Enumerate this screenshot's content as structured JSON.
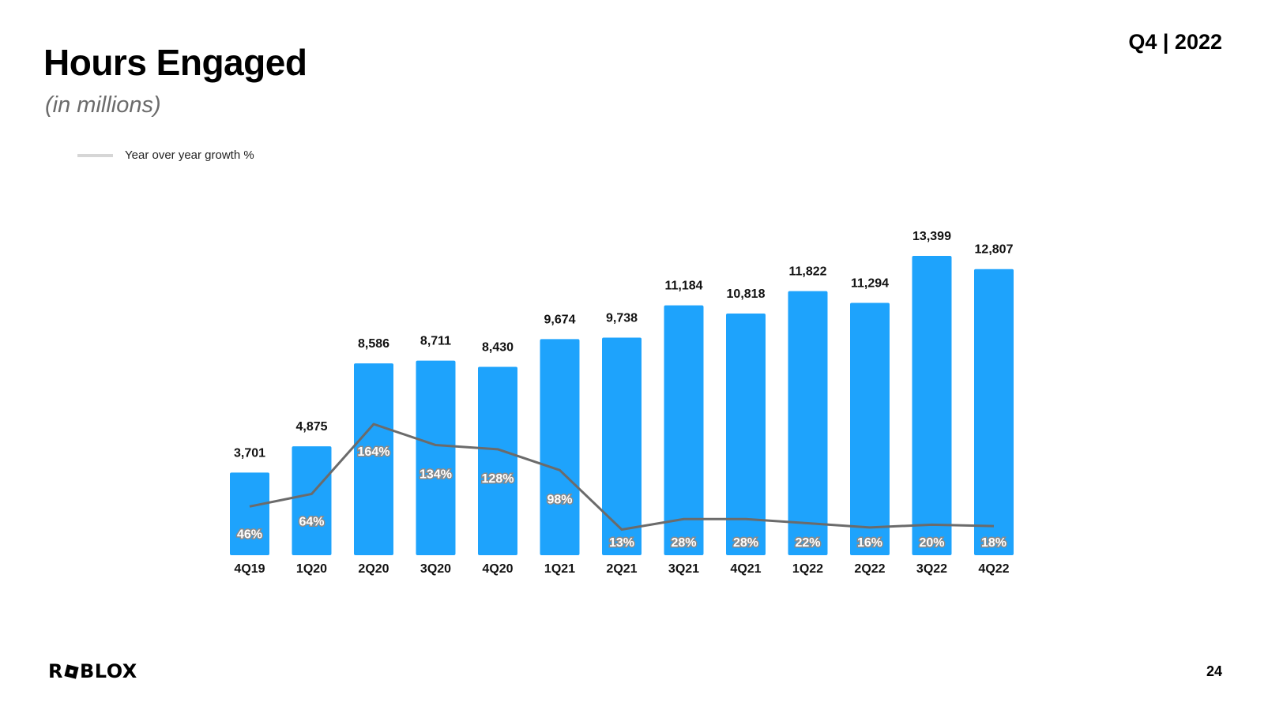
{
  "header": {
    "title": "Hours Engaged",
    "subtitle": "(in millions)",
    "period": "Q4 | 2022"
  },
  "legend": {
    "label": "Year over year growth %",
    "color": "#d6d6d6"
  },
  "footer": {
    "logo_text_left": "R",
    "logo_text_right": "BLOX",
    "page_number": "24"
  },
  "colors": {
    "bar": "#1ea3fc",
    "line": "#6b6b6b"
  },
  "chart_data": {
    "type": "bar",
    "categories": [
      "4Q19",
      "1Q20",
      "2Q20",
      "3Q20",
      "4Q20",
      "1Q21",
      "2Q21",
      "3Q21",
      "4Q21",
      "1Q22",
      "2Q22",
      "3Q22",
      "4Q22"
    ],
    "series": [
      {
        "type": "bar",
        "values": [
          3701,
          4875,
          8586,
          8711,
          8430,
          9674,
          9738,
          11184,
          10818,
          11822,
          11294,
          13399,
          12807
        ],
        "labels": [
          "3,701",
          "4,875",
          "8,586",
          "8,711",
          "8,430",
          "9,674",
          "9,738",
          "11,184",
          "10,818",
          "11,822",
          "11,294",
          "13,399",
          "12,807"
        ]
      },
      {
        "name": "Year over year growth %",
        "type": "line",
        "values": [
          46,
          64,
          164,
          134,
          128,
          98,
          13,
          28,
          28,
          22,
          16,
          20,
          18
        ],
        "labels": [
          "46%",
          "64%",
          "164%",
          "134%",
          "128%",
          "98%",
          "13%",
          "28%",
          "28%",
          "22%",
          "16%",
          "20%",
          "18%"
        ]
      }
    ],
    "title": "Hours Engaged",
    "subtitle": "(in millions)",
    "legend_position": "top-left",
    "grid": false
  }
}
